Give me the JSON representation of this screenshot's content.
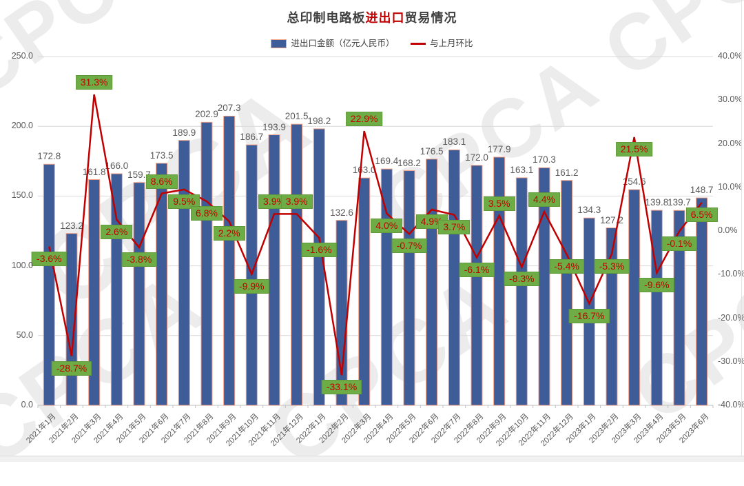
{
  "watermark": {
    "text": "CPCA"
  },
  "title": {
    "prefix": "总印制电路板",
    "highlight": "进出口",
    "suffix": "贸易情况",
    "highlight_color": "#c00000"
  },
  "legend": {
    "items": [
      {
        "label": "进出口金额（亿元人民币）",
        "type": "bar",
        "color": "#3d5c98",
        "border": "#f2a085"
      },
      {
        "label": "与上月环比",
        "type": "line",
        "color": "#c00000"
      }
    ]
  },
  "chart_data": {
    "type": "bar",
    "combo": "bar+line",
    "title": "总印制电路板进出口贸易情况",
    "categories": [
      "2021年1月",
      "2021年2月",
      "2021年3月",
      "2021年4月",
      "2021年5月",
      "2021年6月",
      "2021年7月",
      "2021年8月",
      "2021年9月",
      "2021年10月",
      "2021年11月",
      "2021年12月",
      "2022年1月",
      "2022年2月",
      "2022年3月",
      "2022年4月",
      "2022年5月",
      "2022年6月",
      "2022年7月",
      "2022年8月",
      "2022年9月",
      "2022年10月",
      "2022年11月",
      "2022年12月",
      "2023年1月",
      "2023年2月",
      "2023年3月",
      "2023年4月",
      "2023年5月",
      "2023年6月"
    ],
    "series": [
      {
        "name": "进出口金额（亿元人民币）",
        "type": "bar",
        "axis": "left",
        "color": "#3d5c98",
        "border_color": "#f2a085",
        "values": [
          172.8,
          123.2,
          161.8,
          166.0,
          159.7,
          173.5,
          189.9,
          202.9,
          207.3,
          186.7,
          193.9,
          201.5,
          198.2,
          132.6,
          163.0,
          169.4,
          168.2,
          176.5,
          183.1,
          172.0,
          177.9,
          163.1,
          170.3,
          161.2,
          134.3,
          127.2,
          154.6,
          139.8,
          139.7,
          148.7
        ]
      },
      {
        "name": "与上月环比",
        "type": "line",
        "axis": "right",
        "color": "#c00000",
        "values_pct": [
          -3.6,
          -28.7,
          31.3,
          2.6,
          -3.8,
          8.6,
          9.5,
          6.8,
          2.2,
          -9.9,
          3.9,
          3.9,
          -1.6,
          -33.1,
          22.9,
          4.0,
          -0.7,
          4.9,
          3.7,
          -6.1,
          3.5,
          -8.3,
          4.4,
          -5.4,
          -16.7,
          -5.3,
          21.5,
          -9.6,
          -0.1,
          6.5
        ],
        "label_bg": "#6ead46",
        "label_text_color": "#c00000"
      }
    ],
    "left_axis": {
      "min": 0,
      "max": 250,
      "step": 50,
      "ticks": [
        "250.0",
        "200.0",
        "150.0",
        "100.0",
        "50.0",
        "0.0"
      ]
    },
    "right_axis": {
      "min": -40,
      "max": 40,
      "step": 10,
      "ticks": [
        "40.0%",
        "30.0%",
        "20.0%",
        "10.0%",
        "0.0%",
        "-10.0%",
        "-20.0%",
        "-30.0%",
        "-40.0%"
      ]
    },
    "grid": "horizontal-at-left-ticks",
    "legend_position": "top-center",
    "pct_label_above_indices": [
      2,
      5,
      10,
      11,
      14,
      20,
      22
    ],
    "grid_color": "#d9d9d9",
    "axis_line_color": "#bfbfbf",
    "value_label_color": "#595959"
  }
}
